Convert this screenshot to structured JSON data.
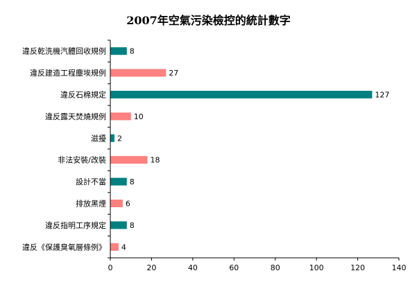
{
  "chart_data": {
    "type": "bar",
    "orientation": "horizontal",
    "title": "2007年空氣污染檢控的統計數字",
    "xlabel": "",
    "ylabel": "",
    "categories": [
      "違反乾洗機汽體回收規例",
      "違反建造工程塵埃規例",
      "違反石棉規定",
      "違反露天焚燒規例",
      "滋擾",
      "非法安裝/改裝",
      "設計不當",
      "排放黑煙",
      "違反指明工序規定",
      "違反《保護臭氧層條例》"
    ],
    "values": [
      8,
      27,
      127,
      10,
      2,
      18,
      8,
      6,
      8,
      4
    ],
    "bar_colors": [
      "#008080",
      "#FF8080",
      "#008080",
      "#FF8080",
      "#008080",
      "#FF8080",
      "#008080",
      "#FF8080",
      "#008080",
      "#FF8080"
    ],
    "xlim": [
      0,
      140
    ],
    "xticks": [
      0,
      20,
      40,
      60,
      80,
      100,
      120,
      140
    ],
    "grid": false,
    "legend": "none"
  }
}
